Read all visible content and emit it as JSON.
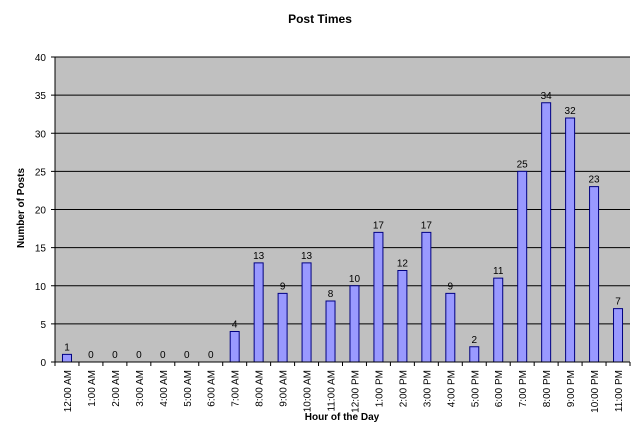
{
  "chart_data": {
    "type": "bar",
    "title": "Post Times",
    "xlabel": "Hour of the Day",
    "ylabel": "Number of Posts",
    "ylim": [
      0,
      40
    ],
    "yticks": [
      0,
      5,
      10,
      15,
      20,
      25,
      30,
      35,
      40
    ],
    "grid": true,
    "legend": "none",
    "categories": [
      "12:00 AM",
      "1:00 AM",
      "2:00 AM",
      "3:00 AM",
      "4:00 AM",
      "5:00 AM",
      "6:00 AM",
      "7:00 AM",
      "8:00 AM",
      "9:00 AM",
      "10:00 AM",
      "11:00 AM",
      "12:00 PM",
      "1:00 PM",
      "2:00 PM",
      "3:00 PM",
      "4:00 PM",
      "5:00 PM",
      "6:00 PM",
      "7:00 PM",
      "8:00 PM",
      "9:00 PM",
      "10:00 PM",
      "11:00 PM"
    ],
    "values": [
      1,
      0,
      0,
      0,
      0,
      0,
      0,
      4,
      13,
      9,
      13,
      8,
      10,
      17,
      12,
      17,
      9,
      2,
      11,
      25,
      34,
      32,
      23,
      7
    ],
    "colors": {
      "plot_bg": "#c0c0c0",
      "bar_fill": "#9999ff",
      "bar_stroke": "#000080",
      "grid": "#000000"
    }
  }
}
